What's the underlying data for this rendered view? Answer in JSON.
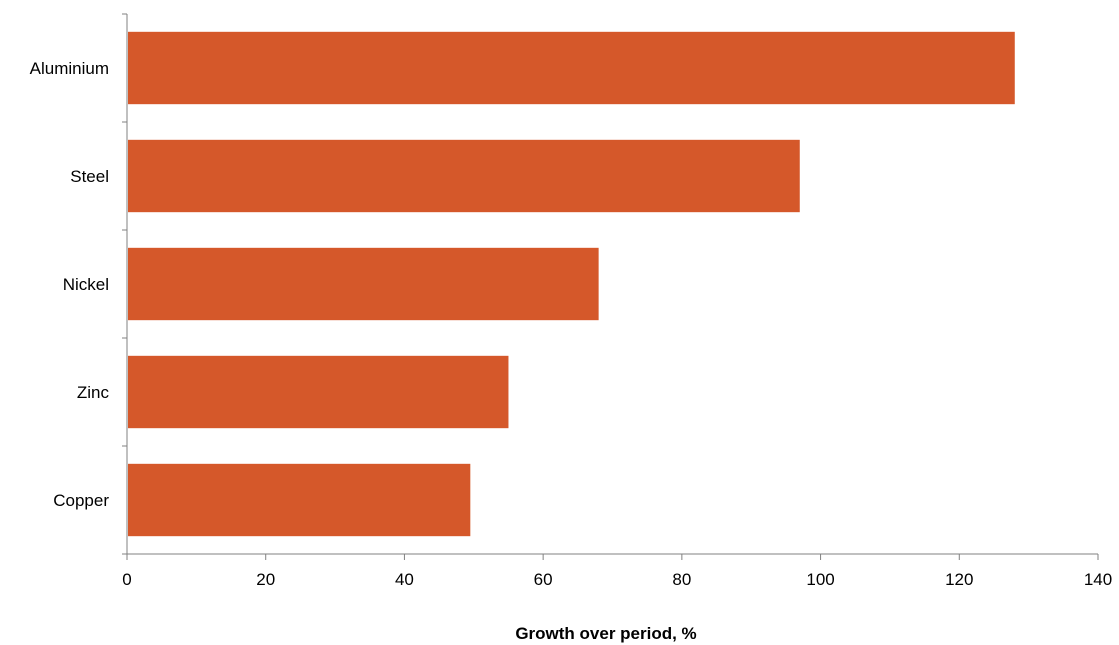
{
  "chart_data": {
    "type": "bar",
    "orientation": "horizontal",
    "categories": [
      "Aluminium",
      "Steel",
      "Nickel",
      "Zinc",
      "Copper"
    ],
    "values": [
      128,
      97,
      68,
      55,
      49.5
    ],
    "title": "",
    "xlabel": "Growth over period, %",
    "ylabel": "",
    "xlim": [
      0,
      140
    ],
    "xticks": [
      "0",
      "20",
      "40",
      "60",
      "80",
      "100",
      "120",
      "140"
    ],
    "grid": false,
    "legend": "none",
    "bar_color": "#D5582A"
  }
}
